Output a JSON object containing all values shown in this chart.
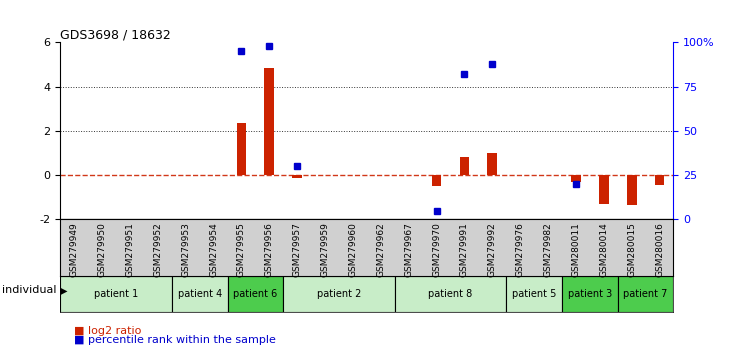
{
  "title": "GDS3698 / 18632",
  "samples": [
    "GSM279949",
    "GSM279950",
    "GSM279951",
    "GSM279952",
    "GSM279953",
    "GSM279954",
    "GSM279955",
    "GSM279956",
    "GSM279957",
    "GSM279959",
    "GSM279960",
    "GSM279962",
    "GSM279967",
    "GSM279970",
    "GSM279991",
    "GSM279992",
    "GSM279976",
    "GSM279982",
    "GSM280011",
    "GSM280014",
    "GSM280015",
    "GSM280016"
  ],
  "log2_ratio": [
    0,
    0,
    0,
    0,
    0,
    0,
    2.35,
    4.85,
    -0.13,
    0,
    0,
    0,
    0,
    -0.5,
    0.82,
    1.0,
    0,
    0,
    -0.32,
    -1.28,
    -1.35,
    -0.42
  ],
  "percentile_rank_pct": [
    null,
    null,
    null,
    null,
    null,
    null,
    95,
    98,
    30,
    null,
    null,
    null,
    null,
    5,
    82,
    88,
    null,
    null,
    20,
    null,
    null,
    null
  ],
  "patients": [
    {
      "label": "patient 1",
      "start": 0,
      "end": 4,
      "color": "#c8edc8"
    },
    {
      "label": "patient 4",
      "start": 4,
      "end": 6,
      "color": "#c8edc8"
    },
    {
      "label": "patient 6",
      "start": 6,
      "end": 8,
      "color": "#4dcc4d"
    },
    {
      "label": "patient 2",
      "start": 8,
      "end": 12,
      "color": "#c8edc8"
    },
    {
      "label": "patient 8",
      "start": 12,
      "end": 16,
      "color": "#c8edc8"
    },
    {
      "label": "patient 5",
      "start": 16,
      "end": 18,
      "color": "#c8edc8"
    },
    {
      "label": "patient 3",
      "start": 18,
      "end": 20,
      "color": "#4dcc4d"
    },
    {
      "label": "patient 7",
      "start": 20,
      "end": 22,
      "color": "#4dcc4d"
    }
  ],
  "ylim_left": [
    -2,
    6
  ],
  "ylim_right": [
    0,
    100
  ],
  "yticks_left": [
    -2,
    0,
    2,
    4,
    6
  ],
  "yticks_right": [
    0,
    25,
    50,
    75,
    100
  ],
  "log2_color": "#cc2200",
  "percentile_color": "#0000cc",
  "zero_line_color": "#cc2200",
  "dotted_line_color": "#333333",
  "bar_width": 0.35,
  "pct_marker_size": 28
}
